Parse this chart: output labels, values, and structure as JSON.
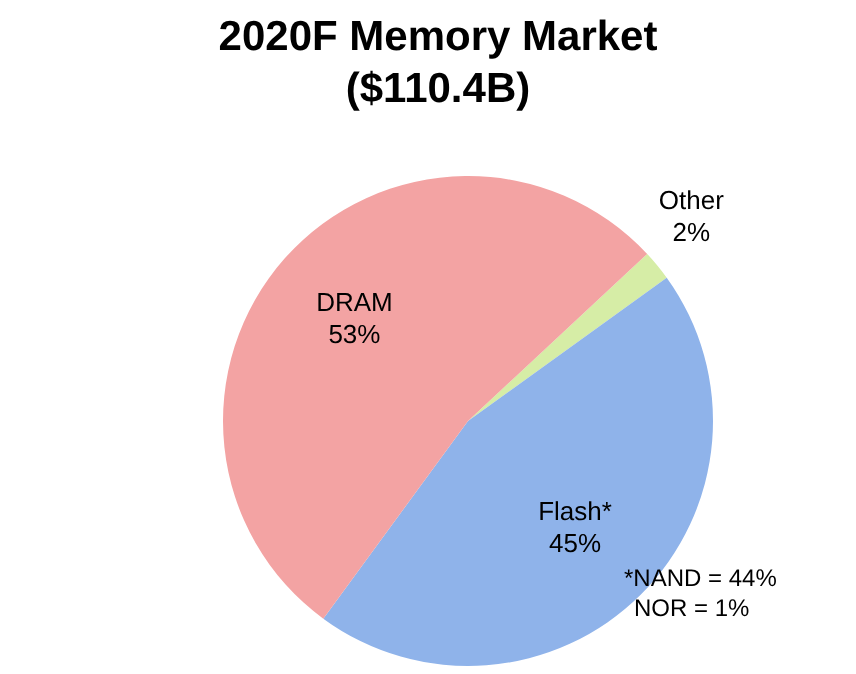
{
  "chart_data": {
    "type": "pie",
    "title": "2020F Memory Market ($110.4B)",
    "categories": [
      "Other",
      "Flash*",
      "DRAM"
    ],
    "values": [
      2,
      45,
      53
    ],
    "colors": [
      "#d6eda6",
      "#8fb3ea",
      "#f3a3a3"
    ],
    "value_labels": [
      "2%",
      "45%",
      "53%"
    ],
    "legend": false,
    "annotations": [
      "*NAND = 44%",
      "NOR = 1%"
    ]
  }
}
